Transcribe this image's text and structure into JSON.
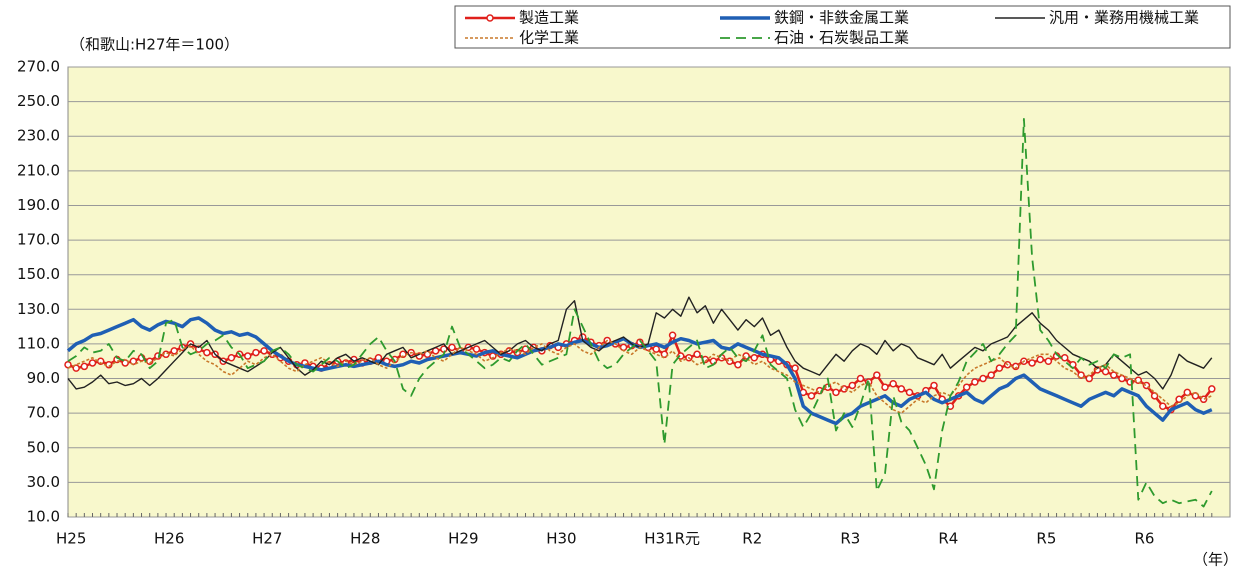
{
  "chart_data": {
    "type": "line",
    "subtitle": "（和歌山:H27年＝100）",
    "xlabel": "（年）",
    "categories": [
      "H25",
      null,
      null,
      null,
      null,
      null,
      null,
      null,
      null,
      null,
      null,
      null,
      "H26",
      null,
      null,
      null,
      null,
      null,
      null,
      null,
      null,
      null,
      null,
      null,
      "H27",
      null,
      null,
      null,
      null,
      null,
      null,
      null,
      null,
      null,
      null,
      null,
      "H28",
      null,
      null,
      null,
      null,
      null,
      null,
      null,
      null,
      null,
      null,
      null,
      "H29",
      null,
      null,
      null,
      null,
      null,
      null,
      null,
      null,
      null,
      null,
      null,
      "H30",
      null,
      null,
      null,
      null,
      null,
      null,
      null,
      null,
      null,
      null,
      null,
      "H31R元",
      null,
      null,
      null,
      null,
      null,
      null,
      null,
      null,
      null,
      null,
      null,
      "R2",
      null,
      null,
      null,
      null,
      null,
      null,
      null,
      null,
      null,
      null,
      null,
      "R3",
      null,
      null,
      null,
      null,
      null,
      null,
      null,
      null,
      null,
      null,
      null,
      "R4",
      null,
      null,
      null,
      null,
      null,
      null,
      null,
      null,
      null,
      null,
      null,
      "R5",
      null,
      null,
      null,
      null,
      null,
      null,
      null,
      null,
      null,
      null,
      null,
      "R6",
      null,
      null,
      null,
      null,
      null,
      null,
      null,
      null
    ],
    "series": [
      {
        "name": "製造工業",
        "color": "#e0201b",
        "style": "solid",
        "marker": "circle",
        "values": [
          98,
          96,
          97,
          99,
          100,
          98,
          101,
          99,
          100,
          102,
          100,
          103,
          104,
          106,
          108,
          110,
          107,
          105,
          104,
          100,
          102,
          104,
          103,
          105,
          106,
          104,
          102,
          100,
          98,
          99,
          97,
          96,
          98,
          100,
          99,
          101,
          99,
          100,
          102,
          100,
          101,
          104,
          105,
          103,
          104,
          106,
          107,
          108,
          106,
          108,
          107,
          105,
          103,
          104,
          106,
          105,
          107,
          108,
          106,
          109,
          108,
          110,
          112,
          114,
          111,
          109,
          112,
          110,
          108,
          109,
          111,
          108,
          107,
          104,
          115,
          103,
          102,
          104,
          101,
          100,
          102,
          100,
          98,
          103,
          102,
          104,
          101,
          100,
          98,
          96,
          82,
          80,
          83,
          85,
          82,
          84,
          86,
          90,
          88,
          92,
          85,
          87,
          84,
          82,
          80,
          83,
          86,
          78,
          74,
          80,
          85,
          88,
          90,
          92,
          96,
          98,
          97,
          100,
          99,
          101,
          100,
          103,
          102,
          98,
          92,
          90,
          95,
          94,
          92,
          90,
          88,
          89,
          86,
          80,
          74,
          72,
          78,
          82,
          80,
          78,
          84
        ]
      },
      {
        "name": "鉄鋼・非鉄金属工業",
        "color": "#1f5fb4",
        "style": "thick",
        "values": [
          106,
          110,
          112,
          115,
          116,
          118,
          120,
          122,
          124,
          120,
          118,
          121,
          123,
          122,
          120,
          124,
          125,
          122,
          118,
          116,
          117,
          115,
          116,
          114,
          110,
          106,
          103,
          100,
          98,
          97,
          96,
          95,
          96,
          97,
          98,
          97,
          98,
          99,
          100,
          98,
          97,
          98,
          100,
          99,
          101,
          102,
          103,
          104,
          105,
          104,
          103,
          105,
          106,
          104,
          103,
          102,
          104,
          106,
          107,
          108,
          110,
          109,
          111,
          112,
          110,
          108,
          109,
          111,
          113,
          110,
          108,
          109,
          110,
          108,
          111,
          113,
          112,
          110,
          111,
          112,
          108,
          107,
          110,
          108,
          106,
          104,
          103,
          102,
          98,
          90,
          74,
          70,
          68,
          66,
          64,
          68,
          70,
          74,
          76,
          78,
          80,
          76,
          74,
          78,
          80,
          82,
          78,
          76,
          78,
          80,
          82,
          78,
          76,
          80,
          84,
          86,
          90,
          92,
          88,
          84,
          82,
          80,
          78,
          76,
          74,
          78,
          80,
          82,
          80,
          84,
          82,
          80,
          74,
          70,
          66,
          72,
          74,
          76,
          72,
          70,
          72
        ]
      },
      {
        "name": "汎用・業務用機械工業",
        "color": "#222222",
        "style": "thin",
        "values": [
          90,
          84,
          85,
          88,
          92,
          87,
          88,
          86,
          87,
          90,
          86,
          90,
          95,
          100,
          105,
          110,
          108,
          112,
          104,
          100,
          98,
          96,
          94,
          97,
          100,
          105,
          108,
          102,
          96,
          92,
          95,
          100,
          98,
          102,
          104,
          100,
          102,
          100,
          98,
          104,
          106,
          108,
          102,
          104,
          106,
          108,
          110,
          104,
          106,
          108,
          110,
          112,
          108,
          104,
          106,
          110,
          112,
          108,
          106,
          110,
          112,
          130,
          135,
          112,
          108,
          106,
          110,
          112,
          114,
          110,
          108,
          110,
          128,
          125,
          130,
          126,
          137,
          128,
          132,
          122,
          130,
          124,
          118,
          124,
          120,
          125,
          115,
          118,
          108,
          100,
          96,
          94,
          92,
          98,
          104,
          100,
          106,
          110,
          108,
          104,
          112,
          106,
          110,
          108,
          102,
          100,
          98,
          104,
          96,
          100,
          104,
          108,
          106,
          110,
          112,
          114,
          120,
          124,
          128,
          122,
          118,
          112,
          108,
          104,
          102,
          100,
          96,
          98,
          104,
          100,
          96,
          92,
          94,
          90,
          84,
          92,
          104,
          100,
          98,
          96,
          102
        ]
      },
      {
        "name": "化学工業",
        "color": "#c8782a",
        "style": "dotted",
        "values": [
          96,
          98,
          100,
          102,
          99,
          97,
          100,
          101,
          98,
          100,
          99,
          102,
          105,
          103,
          107,
          109,
          104,
          100,
          98,
          94,
          92,
          96,
          100,
          98,
          102,
          104,
          100,
          96,
          94,
          98,
          100,
          102,
          99,
          97,
          100,
          98,
          100,
          102,
          98,
          96,
          100,
          103,
          105,
          104,
          106,
          102,
          100,
          104,
          108,
          106,
          104,
          100,
          102,
          105,
          107,
          106,
          104,
          108,
          110,
          106,
          104,
          108,
          110,
          106,
          104,
          108,
          112,
          110,
          106,
          104,
          108,
          106,
          104,
          102,
          106,
          100,
          102,
          98,
          100,
          104,
          102,
          100,
          104,
          102,
          98,
          100,
          96,
          94,
          92,
          88,
          86,
          84,
          82,
          86,
          88,
          84,
          82,
          86,
          88,
          80,
          76,
          72,
          70,
          74,
          78,
          76,
          80,
          82,
          80,
          86,
          92,
          96,
          98,
          100,
          102,
          98,
          96,
          100,
          102,
          104,
          104,
          100,
          96,
          94,
          90,
          92,
          96,
          98,
          94,
          92,
          90,
          88,
          86,
          82,
          78,
          74,
          76,
          80,
          82,
          78,
          80
        ]
      },
      {
        "name": "石油・石炭製品工業",
        "color": "#2e9a2e",
        "style": "dashed",
        "values": [
          100,
          103,
          108,
          105,
          106,
          110,
          102,
          100,
          106,
          104,
          96,
          100,
          122,
          124,
          108,
          104,
          106,
          110,
          112,
          115,
          108,
          104,
          96,
          98,
          100,
          106,
          108,
          104,
          98,
          96,
          94,
          98,
          102,
          100,
          96,
          98,
          104,
          110,
          114,
          106,
          100,
          84,
          80,
          90,
          96,
          100,
          104,
          120,
          108,
          104,
          100,
          96,
          98,
          102,
          100,
          106,
          110,
          104,
          98,
          100,
          102,
          104,
          130,
          120,
          110,
          100,
          96,
          98,
          104,
          108,
          112,
          106,
          100,
          52,
          98,
          104,
          108,
          112,
          96,
          98,
          104,
          108,
          102,
          100,
          106,
          115,
          98,
          94,
          90,
          72,
          62,
          70,
          80,
          90,
          60,
          70,
          62,
          75,
          90,
          25,
          35,
          80,
          65,
          60,
          50,
          40,
          26,
          60,
          80,
          88,
          100,
          105,
          110,
          100,
          104,
          110,
          115,
          240,
          160,
          118,
          112,
          104,
          100,
          96,
          102,
          98,
          100,
          96,
          104,
          102,
          104,
          20,
          30,
          22,
          18,
          20,
          18,
          19,
          20,
          16,
          25
        ]
      }
    ],
    "ylim": [
      10,
      270
    ],
    "yticks": [
      {
        "value": 10,
        "label": "10.0"
      },
      {
        "value": 30,
        "label": "30.0"
      },
      {
        "value": 50,
        "label": "50.0"
      },
      {
        "value": 70,
        "label": "70.0"
      },
      {
        "value": 90,
        "label": "90.0"
      },
      {
        "value": 110,
        "label": "110.0"
      },
      {
        "value": 130,
        "label": "130.0"
      },
      {
        "value": 150,
        "label": "150.0"
      },
      {
        "value": 170,
        "label": "170.0"
      },
      {
        "value": 190,
        "label": "190.0"
      },
      {
        "value": 210,
        "label": "210.0"
      },
      {
        "value": 230,
        "label": "230.0"
      },
      {
        "value": 250,
        "label": "250.0"
      },
      {
        "value": 270,
        "label": "270.0"
      }
    ],
    "grid": true
  }
}
